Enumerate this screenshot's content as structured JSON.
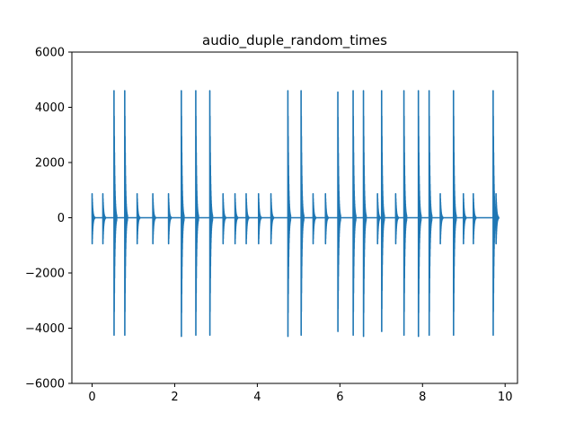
{
  "chart_data": {
    "type": "line",
    "title": "audio_duple_random_times",
    "xlabel": "",
    "ylabel": "",
    "xlim": [
      -0.49,
      10.3
    ],
    "ylim": [
      -6000,
      6000
    ],
    "x_ticks": [
      0,
      2,
      4,
      6,
      8,
      10
    ],
    "y_ticks": [
      -6000,
      -4000,
      -2000,
      0,
      2000,
      4000,
      6000
    ],
    "x_tick_labels": [
      "0",
      "2",
      "4",
      "6",
      "8",
      "10"
    ],
    "y_tick_labels": [
      "−6000",
      "−4000",
      "−2000",
      "0",
      "2000",
      "4000",
      "6000"
    ],
    "grid": false,
    "line_color": "#1f77b4",
    "series": [
      {
        "description": "click events (onset time in seconds, peak positive and negative amplitude)",
        "events": [
          {
            "t": 0.0,
            "pos": 870,
            "neg": -1050
          },
          {
            "t": 0.26,
            "pos": 870,
            "neg": -1050
          },
          {
            "t": 0.53,
            "pos": 4600,
            "neg": -4750
          },
          {
            "t": 0.79,
            "pos": 4600,
            "neg": -4750
          },
          {
            "t": 1.09,
            "pos": 870,
            "neg": -1050
          },
          {
            "t": 1.47,
            "pos": 870,
            "neg": -1050
          },
          {
            "t": 1.85,
            "pos": 870,
            "neg": -1050
          },
          {
            "t": 2.16,
            "pos": 4600,
            "neg": -4800
          },
          {
            "t": 2.51,
            "pos": 4600,
            "neg": -4750
          },
          {
            "t": 2.85,
            "pos": 4600,
            "neg": -4750
          },
          {
            "t": 3.17,
            "pos": 870,
            "neg": -1050
          },
          {
            "t": 3.46,
            "pos": 870,
            "neg": -1050
          },
          {
            "t": 3.73,
            "pos": 870,
            "neg": -1050
          },
          {
            "t": 4.03,
            "pos": 870,
            "neg": -1050
          },
          {
            "t": 4.33,
            "pos": 870,
            "neg": -1050
          },
          {
            "t": 4.74,
            "pos": 4600,
            "neg": -4800
          },
          {
            "t": 5.06,
            "pos": 4600,
            "neg": -4750
          },
          {
            "t": 5.35,
            "pos": 870,
            "neg": -1050
          },
          {
            "t": 5.65,
            "pos": 870,
            "neg": -1050
          },
          {
            "t": 5.95,
            "pos": 4550,
            "neg": -4600
          },
          {
            "t": 6.32,
            "pos": 4600,
            "neg": -4750
          },
          {
            "t": 6.57,
            "pos": 4600,
            "neg": -4800
          },
          {
            "t": 6.91,
            "pos": 870,
            "neg": -1050
          },
          {
            "t": 7.01,
            "pos": 4600,
            "neg": -4600
          },
          {
            "t": 7.35,
            "pos": 870,
            "neg": -1050
          },
          {
            "t": 7.55,
            "pos": 4600,
            "neg": -4750
          },
          {
            "t": 7.9,
            "pos": 4600,
            "neg": -4800
          },
          {
            "t": 8.16,
            "pos": 4600,
            "neg": -4750
          },
          {
            "t": 8.43,
            "pos": 870,
            "neg": -1050
          },
          {
            "t": 8.75,
            "pos": 4600,
            "neg": -4750
          },
          {
            "t": 8.99,
            "pos": 870,
            "neg": -1050
          },
          {
            "t": 9.23,
            "pos": 870,
            "neg": -1050
          },
          {
            "t": 9.71,
            "pos": 4600,
            "neg": -4750
          },
          {
            "t": 9.78,
            "pos": 870,
            "neg": -1050
          }
        ]
      }
    ]
  }
}
